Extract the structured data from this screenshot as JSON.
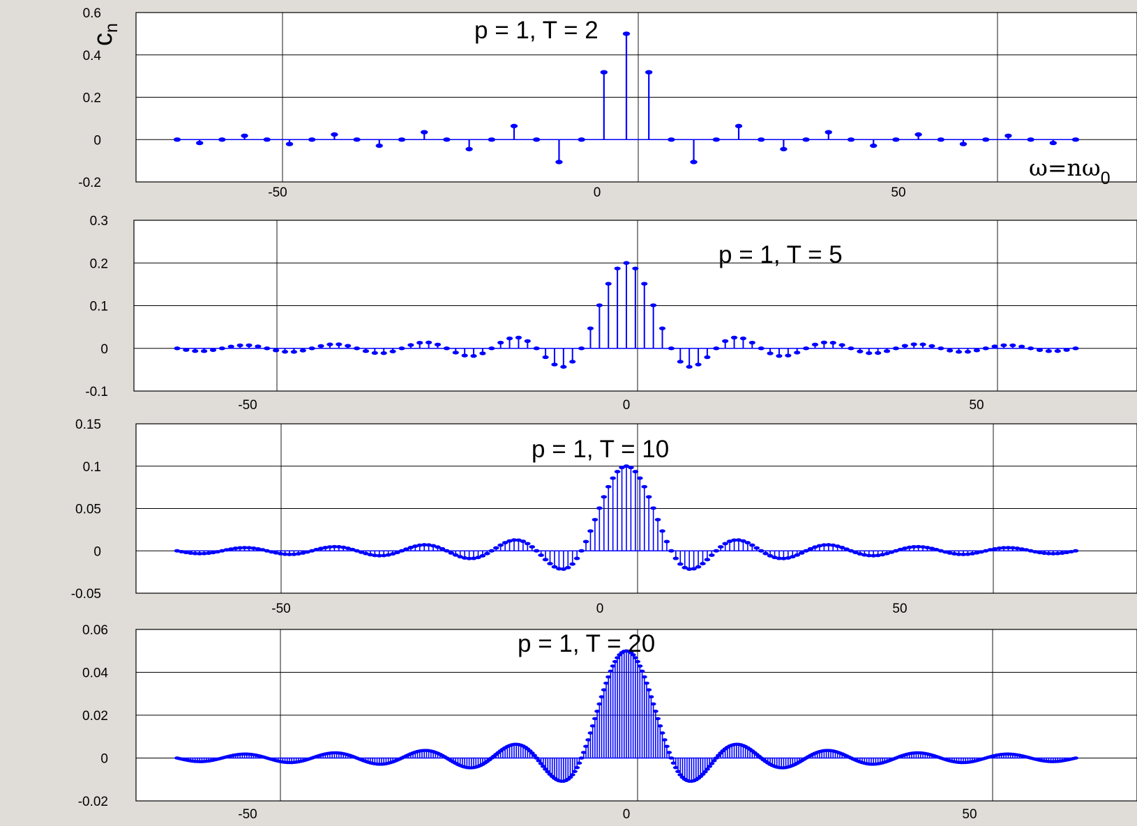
{
  "chart_data": [
    {
      "type": "stem",
      "title": "p = 1, T = 2",
      "ylabel": "c",
      "ylabel_subscript": "n",
      "xlabel": "ω=nω",
      "xlabel_subscript": "0",
      "xlim": [
        -63,
        63
      ],
      "ylim": [
        -0.2,
        0.6
      ],
      "xticks": [
        -50,
        0,
        50
      ],
      "yticks": [
        -0.2,
        0,
        0.2,
        0.4,
        0.6
      ],
      "ytick_labels": [
        "-0.2",
        "0",
        "0.2",
        "0.4",
        "0.6"
      ],
      "grid": true,
      "color": "#0000ff",
      "p": 1,
      "T": 2,
      "n_range": [
        -20,
        20
      ],
      "x": [
        -62.83,
        -59.69,
        -56.55,
        -53.41,
        -50.27,
        -47.12,
        -43.98,
        -40.84,
        -37.7,
        -34.56,
        -31.42,
        -28.27,
        -25.13,
        -21.99,
        -18.85,
        -15.71,
        -12.57,
        -9.42,
        -6.28,
        -3.14,
        0,
        3.14,
        6.28,
        9.42,
        12.57,
        15.71,
        18.85,
        21.99,
        25.13,
        28.27,
        31.42,
        34.56,
        37.7,
        40.84,
        43.98,
        47.12,
        50.27,
        53.41,
        56.55,
        59.69,
        62.83
      ],
      "values": [
        0,
        -0.016,
        0,
        0.018,
        0,
        -0.021,
        0,
        0.024,
        0,
        -0.029,
        0,
        0.035,
        0,
        -0.045,
        0,
        0.064,
        0,
        -0.106,
        0,
        0.318,
        0.5,
        0.318,
        0,
        -0.106,
        0,
        0.064,
        0,
        -0.045,
        0,
        0.035,
        0,
        -0.029,
        0,
        0.024,
        0,
        -0.021,
        0,
        0.018,
        0,
        -0.016,
        0
      ]
    },
    {
      "type": "stem",
      "title": "p = 1, T = 5",
      "xlim": [
        -63,
        63
      ],
      "ylim": [
        -0.1,
        0.3
      ],
      "xticks": [
        -50,
        0,
        50
      ],
      "yticks": [
        -0.1,
        0,
        0.1,
        0.2,
        0.3
      ],
      "ytick_labels": [
        "-0.1",
        "0",
        "0.1",
        "0.2",
        "0.3"
      ],
      "grid": true,
      "color": "#0000ff",
      "p": 1,
      "T": 5,
      "n_range": [
        -50,
        50
      ]
    },
    {
      "type": "stem",
      "title": "p = 1, T = 10",
      "xlim": [
        -63,
        63
      ],
      "ylim": [
        -0.05,
        0.15
      ],
      "xticks": [
        -50,
        0,
        50
      ],
      "yticks": [
        -0.05,
        0,
        0.05,
        0.1,
        0.15
      ],
      "ytick_labels": [
        "-0.05",
        "0",
        "0.05",
        "0.1",
        "0.15"
      ],
      "grid": true,
      "color": "#0000ff",
      "p": 1,
      "T": 10,
      "n_range": [
        -100,
        100
      ]
    },
    {
      "type": "stem",
      "title": "p = 1, T = 20",
      "xlim": [
        -63,
        63
      ],
      "ylim": [
        -0.02,
        0.06
      ],
      "xticks": [
        -50,
        0,
        50
      ],
      "yticks": [
        -0.02,
        0,
        0.02,
        0.04,
        0.06
      ],
      "ytick_labels": [
        "-0.02",
        "0",
        "0.02",
        "0.04",
        "0.06"
      ],
      "grid": true,
      "color": "#0000ff",
      "p": 1,
      "T": 20,
      "n_range": [
        -200,
        200
      ]
    }
  ]
}
